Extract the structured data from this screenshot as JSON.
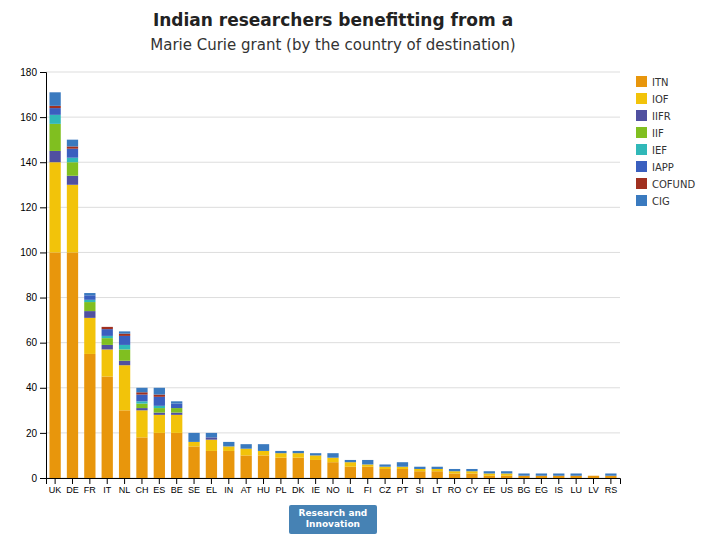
{
  "chart_data": {
    "type": "bar",
    "stacked": true,
    "title": "Indian researchers benefitting from a",
    "subtitle": "Marie Curie grant (by the country of destination)",
    "annotations": [
      "Research and\nInnovation"
    ],
    "categories": [
      "UK",
      "DE",
      "FR",
      "IT",
      "NL",
      "CH",
      "ES",
      "BE",
      "SE",
      "EL",
      "IN",
      "AT",
      "HU",
      "PL",
      "DK",
      "IE",
      "NO",
      "IL",
      "FI",
      "CZ",
      "PT",
      "SI",
      "LT",
      "RO",
      "CY",
      "EE",
      "US",
      "BG",
      "EG",
      "IS",
      "LU",
      "LV",
      "RS"
    ],
    "series": [
      {
        "name": "ITN",
        "color": "#E8960C",
        "values": [
          100,
          100,
          55,
          45,
          30,
          18,
          20,
          20,
          14,
          12,
          12,
          10,
          10,
          9,
          9,
          8,
          7,
          5,
          5,
          4,
          4,
          3,
          3,
          2,
          2,
          1,
          1,
          1,
          1,
          1,
          1,
          1,
          1
        ]
      },
      {
        "name": "IOF",
        "color": "#F2C30A",
        "values": [
          40,
          30,
          16,
          12,
          20,
          12,
          8,
          8,
          2,
          5,
          2,
          3,
          2,
          2,
          2,
          2,
          2,
          2,
          1,
          1,
          1,
          1,
          1,
          1,
          1,
          1,
          1,
          0,
          0,
          0,
          0,
          0,
          0
        ]
      },
      {
        "name": "IIFR",
        "color": "#5050A0",
        "values": [
          5,
          4,
          3,
          2,
          2,
          1,
          1,
          1,
          0,
          1,
          0,
          0,
          0,
          0,
          0,
          0,
          0,
          0,
          0,
          0,
          0,
          0,
          0,
          0,
          0,
          0,
          0,
          0,
          0,
          0,
          0,
          0,
          0
        ]
      },
      {
        "name": "IIF",
        "color": "#80BF20",
        "values": [
          12,
          6,
          4,
          3,
          5,
          2,
          2,
          2,
          0,
          0,
          0,
          0,
          0,
          0,
          0,
          0,
          0,
          0,
          0,
          0,
          0,
          0,
          0,
          0,
          0,
          0,
          0,
          0,
          0,
          0,
          0,
          0,
          0
        ]
      },
      {
        "name": "IEF",
        "color": "#30B8B8",
        "values": [
          4,
          2,
          1,
          1,
          2,
          1,
          1,
          0,
          0,
          0,
          0,
          0,
          0,
          0,
          0,
          0,
          0,
          0,
          0,
          0,
          0,
          0,
          0,
          0,
          0,
          0,
          0,
          0,
          0,
          0,
          0,
          0,
          0
        ]
      },
      {
        "name": "IAPP",
        "color": "#3A5FBF",
        "values": [
          3,
          4,
          2,
          3,
          4,
          3,
          4,
          2,
          0,
          0,
          0,
          0,
          0,
          0,
          0,
          0,
          0,
          0,
          0,
          0,
          0,
          0,
          0,
          0,
          0,
          0,
          0,
          0,
          0,
          0,
          0,
          0,
          0
        ]
      },
      {
        "name": "COFUND",
        "color": "#A03020",
        "values": [
          1,
          1,
          0,
          1,
          1,
          1,
          1,
          0,
          0,
          0,
          0,
          0,
          0,
          0,
          0,
          0,
          0,
          0,
          0,
          0,
          0,
          0,
          0,
          0,
          0,
          0,
          0,
          0,
          0,
          0,
          0,
          0,
          0
        ]
      },
      {
        "name": "CIG",
        "color": "#3A7ABF",
        "values": [
          6,
          3,
          1,
          0,
          1,
          2,
          3,
          1,
          4,
          2,
          2,
          2,
          3,
          1,
          1,
          1,
          2,
          1,
          2,
          1,
          2,
          1,
          1,
          1,
          1,
          1,
          1,
          1,
          1,
          1,
          1,
          0,
          1
        ]
      }
    ],
    "ylim": [
      0,
      180
    ],
    "yticks": [
      0,
      20,
      40,
      60,
      80,
      100,
      120,
      140,
      160,
      180
    ],
    "grid": true,
    "legend": "right"
  }
}
